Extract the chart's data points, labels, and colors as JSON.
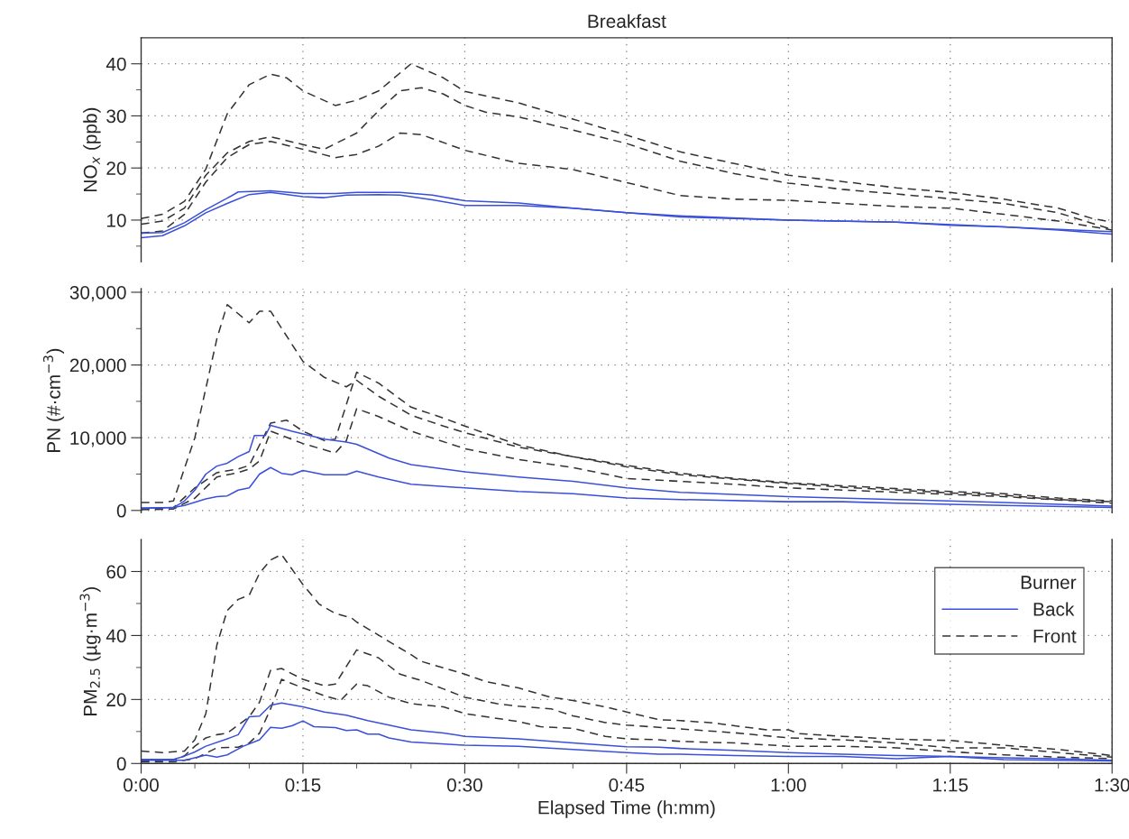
{
  "chart_data": [
    {
      "type": "line",
      "title": "Breakfast",
      "ylabel": "NO$_{x}$ (ppb)",
      "xlim": [
        0,
        1.5
      ],
      "ylim": [
        2,
        45
      ],
      "xticks": [
        0,
        0.25,
        0.5,
        0.75,
        1,
        1.25,
        1.5
      ],
      "yticks": [
        {
          "value": 5,
          "label": null
        },
        10,
        {
          "value": 15,
          "label": null
        },
        20,
        {
          "value": 25,
          "label": null
        },
        30,
        {
          "value": 35,
          "label": null
        },
        40
      ],
      "tick_labels": "y",
      "grid": true,
      "legend": false,
      "series": [
        {
          "color": "#333333",
          "line_style": "dashed",
          "x": [
            0,
            0.033,
            0.067,
            0.1,
            0.133,
            0.167,
            0.2,
            0.225,
            0.25,
            0.3,
            0.333,
            0.367,
            0.417,
            0.467,
            0.5,
            0.583,
            0.667,
            0.75,
            0.833,
            0.967,
            1,
            1.083,
            1.167,
            1.25,
            1.333,
            1.417,
            1.467,
            1.5
          ],
          "values": [
            10.3,
            11.1,
            13.6,
            19.8,
            30.4,
            36,
            38,
            37.3,
            34.8,
            32,
            33,
            34.8,
            40,
            37.3,
            34.7,
            32.5,
            29.4,
            26.3,
            23.1,
            19.5,
            18.6,
            17.4,
            16.2,
            15.3,
            14,
            12.3,
            10.4,
            9.6
          ]
        },
        {
          "color": "#333333",
          "line_style": "dashed",
          "x": [
            0,
            0.033,
            0.067,
            0.1,
            0.133,
            0.167,
            0.2,
            0.25,
            0.283,
            0.333,
            0.367,
            0.4,
            0.433,
            0.467,
            0.5,
            0.533,
            0.583,
            0.667,
            0.75,
            0.833,
            0.917,
            1,
            1.083,
            1.167,
            1.25,
            1.333,
            1.417,
            1.5
          ],
          "values": [
            9.2,
            9.8,
            12.3,
            18.6,
            22.9,
            25.1,
            26,
            24.5,
            23.6,
            26.7,
            31,
            34.8,
            35.4,
            34.2,
            32,
            30.7,
            29.8,
            27.3,
            24.7,
            21.3,
            18.9,
            17.1,
            15.9,
            15,
            14.1,
            13.2,
            11.4,
            8.2
          ]
        },
        {
          "color": "#333333",
          "line_style": "dashed",
          "x": [
            0,
            0.033,
            0.067,
            0.1,
            0.133,
            0.167,
            0.2,
            0.25,
            0.3,
            0.333,
            0.367,
            0.4,
            0.433,
            0.5,
            0.583,
            0.667,
            0.75,
            0.833,
            0.917,
            1,
            1.083,
            1.167,
            1.25,
            1.333,
            1.417,
            1.5
          ],
          "values": [
            7.5,
            7.9,
            11.1,
            17.3,
            22,
            24.5,
            25.1,
            23.6,
            22,
            22.6,
            24.2,
            26.7,
            26.4,
            23.4,
            20.9,
            19.7,
            17.2,
            14.7,
            14,
            13.8,
            13.2,
            12.6,
            12.3,
            11.1,
            9.8,
            8.1
          ]
        },
        {
          "color": "#3a50d8",
          "line_style": "solid",
          "x": [
            0,
            0.033,
            0.067,
            0.1,
            0.133,
            0.15,
            0.2,
            0.25,
            0.3,
            0.333,
            0.4,
            0.45,
            0.5,
            0.583,
            0.667,
            0.75,
            0.833,
            1,
            1.167,
            1.25,
            1.333,
            1.417,
            1.5
          ],
          "values": [
            7.5,
            7.6,
            9.5,
            12,
            14.2,
            15.4,
            15.6,
            15.1,
            15.1,
            15.3,
            15.3,
            14.8,
            13.7,
            13.3,
            12.3,
            11.4,
            10.8,
            10,
            9.6,
            9,
            8.7,
            8.2,
            7.8
          ]
        },
        {
          "color": "#3a50d8",
          "line_style": "solid",
          "x": [
            0,
            0.033,
            0.067,
            0.1,
            0.133,
            0.167,
            0.2,
            0.25,
            0.283,
            0.317,
            0.367,
            0.4,
            0.45,
            0.5,
            0.583,
            0.667,
            0.75,
            0.833,
            1,
            1.167,
            1.333,
            1.417,
            1.5
          ],
          "values": [
            6.6,
            7,
            8.9,
            11.4,
            13.2,
            14.9,
            15.3,
            14.5,
            14.3,
            14.8,
            14.9,
            14.8,
            13.9,
            12.8,
            12.8,
            12.3,
            11.4,
            10.6,
            10,
            9.6,
            8.7,
            8.1,
            7.3
          ]
        }
      ]
    },
    {
      "type": "line",
      "ylabel": "PN (#·cm$^{−3}$)",
      "xlim": [
        0,
        1.5
      ],
      "ylim": [
        -300,
        30500
      ],
      "xticks": [
        0,
        0.25,
        0.5,
        0.75,
        1,
        1.25,
        1.5
      ],
      "yticks": [
        0,
        {
          "value": 5000,
          "label": null
        },
        {
          "value": 10000,
          "label": "10,000"
        },
        {
          "value": 15000,
          "label": null
        },
        {
          "value": 20000,
          "label": "20,000"
        },
        {
          "value": 25000,
          "label": null
        },
        {
          "value": 30000,
          "label": "30,000"
        }
      ],
      "tick_labels": "y",
      "grid": true,
      "legend": false,
      "series": [
        {
          "color": "#333333",
          "line_style": "dashed",
          "x": [
            0,
            0.033,
            0.05,
            0.083,
            0.117,
            0.133,
            0.167,
            0.183,
            0.2,
            0.25,
            0.283,
            0.317,
            0.333,
            0.367,
            0.417,
            0.467,
            0.5,
            0.583,
            0.667,
            0.75,
            0.833,
            0.917,
            1,
            1.083,
            1.167,
            1.25,
            1.333,
            1.417,
            1.5
          ],
          "values": [
            1100,
            1100,
            1300,
            10000,
            23600,
            28300,
            25800,
            27400,
            27400,
            20500,
            18300,
            17000,
            17900,
            15700,
            13100,
            11600,
            10700,
            8700,
            7400,
            6200,
            5100,
            4400,
            3800,
            3400,
            3000,
            2600,
            2300,
            1700,
            1300
          ]
        },
        {
          "color": "#333333",
          "line_style": "dashed",
          "x": [
            0,
            0.05,
            0.083,
            0.117,
            0.15,
            0.167,
            0.2,
            0.225,
            0.25,
            0.283,
            0.3,
            0.333,
            0.367,
            0.417,
            0.467,
            0.5,
            0.583,
            0.667,
            0.75,
            0.833,
            0.917,
            1,
            1.083,
            1.167,
            1.25,
            1.333,
            1.417,
            1.5
          ],
          "values": [
            200,
            400,
            3100,
            5200,
            5700,
            6200,
            12000,
            12400,
            10900,
            9600,
            9800,
            19000,
            17500,
            14200,
            12700,
            11600,
            9000,
            7400,
            6000,
            4900,
            4300,
            3700,
            3200,
            2800,
            2400,
            2100,
            1500,
            1200
          ]
        },
        {
          "color": "#333333",
          "line_style": "dashed",
          "x": [
            0,
            0.05,
            0.083,
            0.117,
            0.15,
            0.167,
            0.183,
            0.2,
            0.25,
            0.3,
            0.317,
            0.333,
            0.367,
            0.417,
            0.5,
            0.583,
            0.667,
            0.75,
            0.833,
            0.917,
            1,
            1.167,
            1.333,
            1.5
          ],
          "values": [
            100,
            200,
            1700,
            4600,
            5200,
            5700,
            6800,
            10900,
            9200,
            7900,
            9600,
            14000,
            12900,
            10900,
            8500,
            7000,
            5900,
            4400,
            4000,
            3600,
            3100,
            2500,
            1900,
            1000
          ]
        },
        {
          "color": "#3a50d8",
          "line_style": "solid",
          "x": [
            0,
            0.05,
            0.067,
            0.083,
            0.1,
            0.117,
            0.133,
            0.15,
            0.167,
            0.175,
            0.192,
            0.2,
            0.233,
            0.283,
            0.317,
            0.333,
            0.383,
            0.417,
            0.5,
            0.583,
            0.667,
            0.75,
            0.833,
            1,
            1.167,
            1.333,
            1.5
          ],
          "values": [
            300,
            400,
            1300,
            2800,
            5000,
            6100,
            6500,
            7400,
            8100,
            10300,
            10300,
            11700,
            10900,
            9800,
            9400,
            9100,
            7200,
            6300,
            5300,
            4600,
            4000,
            3100,
            2500,
            1900,
            1500,
            1100,
            600
          ]
        },
        {
          "color": "#3a50d8",
          "line_style": "solid",
          "x": [
            0,
            0.05,
            0.067,
            0.1,
            0.117,
            0.133,
            0.15,
            0.167,
            0.183,
            0.2,
            0.217,
            0.233,
            0.25,
            0.283,
            0.317,
            0.333,
            0.367,
            0.417,
            0.5,
            0.583,
            0.667,
            0.75,
            0.833,
            1,
            1.083,
            1.167,
            1.333,
            1.5
          ],
          "values": [
            300,
            400,
            700,
            1600,
            1900,
            2000,
            2800,
            3100,
            5000,
            5900,
            5100,
            4900,
            5500,
            4900,
            4900,
            5400,
            4600,
            3600,
            3100,
            2600,
            2300,
            1700,
            1500,
            1200,
            1200,
            1000,
            700,
            400
          ]
        }
      ]
    },
    {
      "type": "line",
      "ylabel": "PM$_{2.5}$ (µg·m$^{−3}$)",
      "xlabel": "Elapsed Time (h:mm)",
      "legend_title": "Burner",
      "xlim": [
        0,
        1.5
      ],
      "ylim": [
        0,
        70
      ],
      "xticks": [
        {
          "value": 0,
          "label": "0:00"
        },
        {
          "value": 0.083,
          "label": null
        },
        {
          "value": 0.167,
          "label": null
        },
        {
          "value": 0.25,
          "label": "0:15"
        },
        {
          "value": 0.333,
          "label": null
        },
        {
          "value": 0.417,
          "label": null
        },
        {
          "value": 0.5,
          "label": "0:30"
        },
        {
          "value": 0.583,
          "label": null
        },
        {
          "value": 0.667,
          "label": null
        },
        {
          "value": 0.75,
          "label": "0:45"
        },
        {
          "value": 0.833,
          "label": null
        },
        {
          "value": 0.917,
          "label": null
        },
        {
          "value": 1,
          "label": "1:00"
        },
        {
          "value": 1.083,
          "label": null
        },
        {
          "value": 1.167,
          "label": null
        },
        {
          "value": 1.25,
          "label": "1:15"
        },
        {
          "value": 1.333,
          "label": null
        },
        {
          "value": 1.417,
          "label": null
        },
        {
          "value": 1.5,
          "label": "1:30"
        }
      ],
      "yticks": [
        0,
        {
          "value": 10,
          "label": null
        },
        20,
        {
          "value": 30,
          "label": null
        },
        40,
        {
          "value": 50,
          "label": null
        },
        60
      ],
      "grid": true,
      "legend": "top right",
      "series": [
        {
          "name": "Front",
          "color": "#333333",
          "line_style": "dashed",
          "x": [
            0,
            0.033,
            0.067,
            0.083,
            0.1,
            0.117,
            0.133,
            0.15,
            0.167,
            0.183,
            0.2,
            0.217,
            0.25,
            0.275,
            0.3,
            0.325,
            0.333,
            0.367,
            0.383,
            0.417,
            0.433,
            0.467,
            0.5,
            0.533,
            0.583,
            0.633,
            0.667,
            0.717,
            0.75,
            0.8,
            0.833,
            0.883,
            0.917,
            0.967,
            1,
            1.017,
            1.083,
            1.167,
            1.25,
            1.333,
            1.417,
            1.5
          ],
          "values": [
            3.9,
            3.4,
            3.9,
            7.4,
            15.6,
            37,
            47.8,
            51.3,
            52.6,
            59.5,
            63.6,
            65.3,
            55.9,
            49.8,
            46.9,
            45.5,
            44.2,
            40.1,
            38.1,
            34,
            31.9,
            29.9,
            27.9,
            25.6,
            23.6,
            20.7,
            19.7,
            17.7,
            16.1,
            13.7,
            13.4,
            12.7,
            11.8,
            10.5,
            10.5,
            9.3,
            8.5,
            7.6,
            7.2,
            5.7,
            4.4,
            2.5
          ]
        },
        {
          "color": "#333333",
          "line_style": "dashed",
          "x": [
            0,
            0.05,
            0.067,
            0.083,
            0.1,
            0.117,
            0.133,
            0.15,
            0.167,
            0.183,
            0.2,
            0.217,
            0.25,
            0.283,
            0.3,
            0.333,
            0.367,
            0.4,
            0.433,
            0.467,
            0.5,
            0.55,
            0.583,
            0.633,
            0.667,
            0.717,
            0.75,
            0.8,
            0.833,
            0.917,
            1,
            1.083,
            1.167,
            1.25,
            1.333,
            1.417,
            1.5
          ],
          "values": [
            0.8,
            1,
            2.4,
            5.4,
            8,
            9,
            9.5,
            12,
            14.6,
            19.2,
            29.1,
            29.7,
            26.3,
            24.3,
            24.8,
            35.5,
            33,
            27.9,
            25.9,
            23.3,
            20.7,
            18.7,
            17.9,
            17.1,
            14.9,
            12.8,
            12,
            11.3,
            10.8,
            9.6,
            8,
            7.4,
            6.4,
            4.9,
            4.9,
            3.4,
            2
          ]
        },
        {
          "color": "#333333",
          "line_style": "dashed",
          "x": [
            0,
            0.05,
            0.083,
            0.117,
            0.15,
            0.167,
            0.183,
            0.2,
            0.217,
            0.25,
            0.283,
            0.308,
            0.333,
            0.35,
            0.383,
            0.417,
            0.467,
            0.5,
            0.533,
            0.583,
            0.617,
            0.667,
            0.717,
            0.75,
            0.8,
            0.833,
            0.917,
            1,
            1.083,
            1.167,
            1.25,
            1.333,
            1.417,
            1.5
          ],
          "values": [
            0.5,
            0.5,
            1.5,
            4.9,
            5.1,
            6.4,
            9.5,
            17.1,
            26.3,
            23.6,
            21.2,
            19.7,
            24.8,
            24.3,
            20.7,
            18.7,
            17.7,
            15.6,
            14.6,
            13.1,
            11.5,
            11,
            8.5,
            7.7,
            7.4,
            6.9,
            6.4,
            5.4,
            5.4,
            4.9,
            3.7,
            2.7,
            2,
            1.5
          ]
        },
        {
          "name": "Back",
          "color": "#3a50d8",
          "line_style": "solid",
          "x": [
            0,
            0.05,
            0.067,
            0.083,
            0.1,
            0.133,
            0.15,
            0.167,
            0.183,
            0.2,
            0.217,
            0.25,
            0.283,
            0.317,
            0.35,
            0.383,
            0.417,
            0.467,
            0.5,
            0.583,
            0.667,
            0.75,
            0.8,
            0.833,
            0.917,
            1,
            1.083,
            1.167,
            1.25,
            1.333,
            1.417,
            1.5
          ],
          "values": [
            1.3,
            1.3,
            2.3,
            3.6,
            5.4,
            7.7,
            9,
            14.6,
            14.8,
            18.2,
            18.9,
            17.7,
            16.1,
            15.1,
            13.4,
            12,
            10.5,
            9.5,
            8.5,
            7.7,
            6.4,
            5.2,
            5.1,
            4.7,
            4.1,
            3.4,
            2.9,
            2.5,
            2.2,
            1.8,
            1.5,
            1
          ]
        },
        {
          "color": "#3a50d8",
          "line_style": "solid",
          "x": [
            0,
            0.067,
            0.1,
            0.117,
            0.133,
            0.158,
            0.183,
            0.2,
            0.217,
            0.233,
            0.25,
            0.267,
            0.3,
            0.317,
            0.333,
            0.35,
            0.367,
            0.383,
            0.417,
            0.5,
            0.583,
            0.667,
            0.75,
            0.8,
            0.833,
            0.917,
            1,
            1.083,
            1.167,
            1.25,
            1.333,
            1.417,
            1.5
          ],
          "values": [
            1,
            1,
            2.6,
            2,
            2.7,
            5.4,
            7.4,
            11.3,
            11,
            11.8,
            13.3,
            11.5,
            11.2,
            10.3,
            10.5,
            9.2,
            9.2,
            8,
            6.7,
            5.7,
            5.4,
            4.4,
            3.4,
            2.9,
            2.9,
            2.5,
            2.2,
            2.2,
            1.5,
            2.2,
            1.2,
            1,
            0.8
          ]
        }
      ]
    }
  ]
}
